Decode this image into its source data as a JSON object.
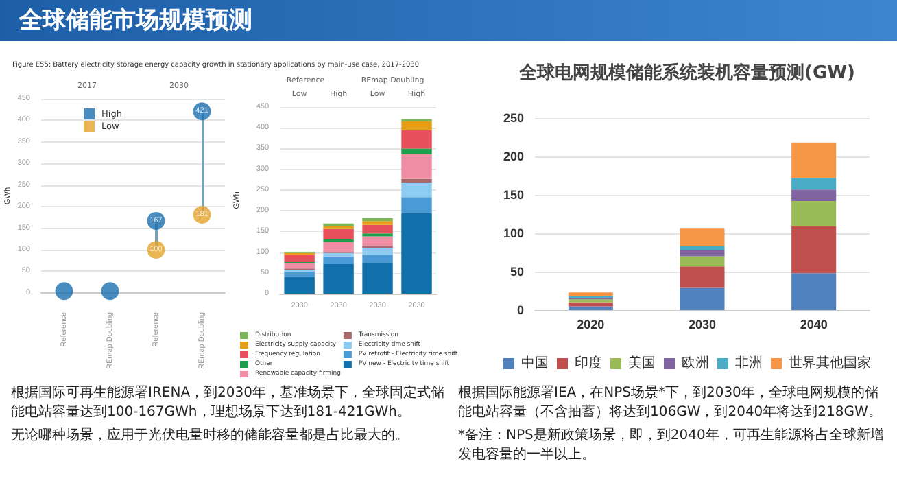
{
  "chart_data": [
    {
      "type": "scatter",
      "title": "Figure E55: Battery electricity storage energy capacity growth in stationary applications by main-use case, 2017-2030",
      "ylabel": "GWh",
      "categories": [
        "Reference",
        "REmap Doubling",
        "Reference",
        "REmap Doubling"
      ],
      "annotations": [
        "2017",
        "2030"
      ],
      "series": [
        {
          "name": "High",
          "color": "#1a6fb0",
          "values": [
            4,
            4,
            167,
            421
          ],
          "value_labels": [
            null,
            null,
            "167",
            "421"
          ]
        },
        {
          "name": "Low",
          "color": "#e5a42a",
          "values": [
            null,
            null,
            100,
            181
          ],
          "value_labels": [
            null,
            null,
            "100",
            "181"
          ]
        }
      ],
      "ylim": [
        0,
        450
      ],
      "yticks": [
        0,
        50,
        100,
        150,
        200,
        250,
        300,
        350,
        400,
        450
      ],
      "grid": "y",
      "legend": "top left",
      "marker": "circle"
    },
    {
      "type": "bar",
      "stacked": true,
      "ylabel": "GWh",
      "categories": [
        "2030",
        "2030",
        "2030",
        "2030"
      ],
      "annotations": [
        "Reference",
        "REmap Doubling",
        "Low",
        "High",
        "Low",
        "High"
      ],
      "series": [
        {
          "name": "PV new - Electricity time shift",
          "color": "#1170aa",
          "values": [
            41,
            71,
            74,
            195
          ]
        },
        {
          "name": "PV retrofit - Electricity time shift",
          "color": "#4a9ad6",
          "values": [
            12,
            19,
            20,
            38
          ]
        },
        {
          "name": "Electricity time shift",
          "color": "#8dcdf2",
          "values": [
            5,
            8,
            17,
            35
          ]
        },
        {
          "name": "Transmission",
          "color": "#a86a6a",
          "values": [
            3,
            3,
            4,
            9
          ]
        },
        {
          "name": "Renewable capacity firming",
          "color": "#f08ea6",
          "values": [
            12,
            24,
            23,
            59
          ]
        },
        {
          "name": "Other",
          "color": "#1e9e4a",
          "values": [
            3,
            6,
            7,
            14
          ]
        },
        {
          "name": "Frequency regulation",
          "color": "#e8505b",
          "values": [
            18,
            25,
            21,
            44
          ]
        },
        {
          "name": "Electricity supply capacity",
          "color": "#e59e1a",
          "values": [
            4,
            7,
            9,
            22
          ]
        },
        {
          "name": "Distribution",
          "color": "#7cb45a",
          "values": [
            3,
            6,
            7,
            5
          ]
        }
      ],
      "ylim": [
        0,
        450
      ],
      "yticks": [
        0,
        50,
        100,
        150,
        200,
        250,
        300,
        350,
        400,
        450
      ],
      "grid": "y",
      "legend": "bottom"
    },
    {
      "type": "bar",
      "stacked": true,
      "title": "全球电网规模储能系统装机容量预测(GW)",
      "categories": [
        "2020",
        "2030",
        "2040"
      ],
      "series": [
        {
          "name": "中国",
          "color": "#4f81bd",
          "values": [
            5,
            29,
            48
          ]
        },
        {
          "name": "印度",
          "color": "#c0504d",
          "values": [
            5,
            28,
            61
          ]
        },
        {
          "name": "美国",
          "color": "#9bbb59",
          "values": [
            4,
            13,
            33
          ]
        },
        {
          "name": "欧洲",
          "color": "#8064a2",
          "values": [
            2,
            8,
            15
          ]
        },
        {
          "name": "非洲",
          "color": "#4bacc6",
          "values": [
            2,
            6,
            15
          ]
        },
        {
          "name": "世界其他国家",
          "color": "#f79646",
          "values": [
            5,
            22,
            46
          ]
        }
      ],
      "ylim": [
        0,
        250
      ],
      "yticks": [
        0,
        50,
        100,
        150,
        200,
        250
      ],
      "grid": "y",
      "legend": "bottom"
    },
    {
      "type": "other",
      "title": "全球储能市场规模预测"
    },
    {
      "type": "other",
      "annotations": [
        "根据国际可再生能源署IRENA，到2030年，基准场景下，全球固定式储能电站容量达到100-167GWh，理想场景下达到181-421GWh。",
        "无论哪种场景，应用于光伏电量时移的储能容量都是占比最大的。"
      ]
    },
    {
      "type": "other",
      "annotations": [
        "根据国际能源署IEA，在NPS场景*下，到2030年，全球电网规模的储能电站容量（不含抽蓄）将达到106GW，到2040年将达到218GW。",
        "*备注：NPS是新政策场景，即，到2040年，可再生能源将占全球新增发电容量的一半以上。"
      ]
    }
  ]
}
